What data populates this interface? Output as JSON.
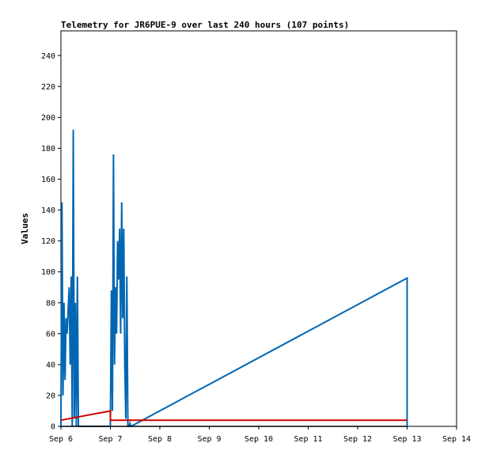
{
  "chart_data": {
    "type": "line",
    "title": "Telemetry for JR6PUE-9 over last 240 hours (107 points)",
    "xlabel": "",
    "ylabel": "Values",
    "x_ticks": [
      "Sep 6",
      "Sep 7",
      "Sep 8",
      "Sep 9",
      "Sep 10",
      "Sep 11",
      "Sep 12",
      "Sep 13",
      "Sep 14"
    ],
    "y_ticks": [
      0,
      20,
      40,
      60,
      80,
      100,
      120,
      140,
      160,
      180,
      200,
      220,
      240
    ],
    "xlim": [
      "Sep 6 00:00",
      "Sep 14 00:00"
    ],
    "ylim": [
      0,
      256
    ],
    "grid": false,
    "legend": "none",
    "series": [
      {
        "color": "#0066b3",
        "x": [
          "Sep 6 00:00",
          "Sep 6 00:30",
          "Sep 6 01:00",
          "Sep 6 01:30",
          "Sep 6 02:00",
          "Sep 6 02:30",
          "Sep 6 03:00",
          "Sep 6 03:30",
          "Sep 6 04:00",
          "Sep 6 04:30",
          "Sep 6 05:00",
          "Sep 6 05:30",
          "Sep 6 06:00",
          "Sep 6 06:30",
          "Sep 6 07:00",
          "Sep 6 07:30",
          "Sep 6 08:00",
          "Sep 6 08:30",
          "Sep 7 00:00",
          "Sep 7 00:30",
          "Sep 7 01:00",
          "Sep 7 01:30",
          "Sep 7 02:00",
          "Sep 7 02:30",
          "Sep 7 03:00",
          "Sep 7 03:30",
          "Sep 7 04:00",
          "Sep 7 04:30",
          "Sep 7 05:00",
          "Sep 7 05:30",
          "Sep 7 06:00",
          "Sep 7 06:30",
          "Sep 7 07:00",
          "Sep 7 07:30",
          "Sep 7 08:00",
          "Sep 7 08:30",
          "Sep 7 09:00",
          "Sep 7 09:30",
          "Sep 7 10:00",
          "Sep 13 00:00",
          "Sep 13 00:00"
        ],
        "values": [
          0,
          145,
          20,
          80,
          30,
          70,
          60,
          75,
          90,
          40,
          97,
          0,
          192,
          5,
          80,
          0,
          97,
          0,
          0,
          88,
          10,
          176,
          40,
          90,
          60,
          120,
          95,
          128,
          60,
          145,
          70,
          128,
          40,
          5,
          97,
          0,
          0,
          2,
          0,
          96,
          0
        ]
      },
      {
        "color": "#cc0000",
        "x": [
          "Sep 6 00:00",
          "Sep 7 00:00",
          "Sep 7 00:00",
          "Sep 13 00:00"
        ],
        "values": [
          4,
          10,
          4,
          4
        ]
      },
      {
        "color": "#000000",
        "x": [
          "Sep 6 00:00",
          "Sep 13 00:00"
        ],
        "values": [
          0,
          0
        ]
      }
    ]
  }
}
